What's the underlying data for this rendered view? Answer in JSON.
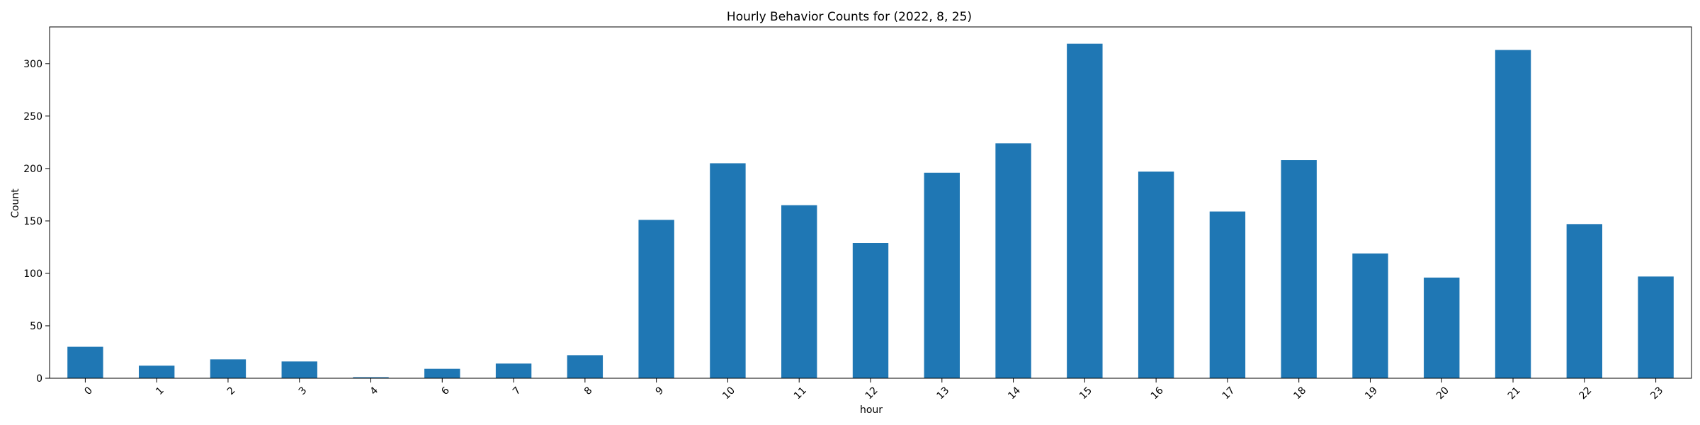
{
  "chart_data": {
    "type": "bar",
    "title": "Hourly Behavior Counts for (2022, 8, 25)",
    "xlabel": "hour",
    "ylabel": "Count",
    "categories": [
      "0",
      "1",
      "2",
      "3",
      "4",
      "6",
      "7",
      "8",
      "9",
      "10",
      "11",
      "12",
      "13",
      "14",
      "15",
      "16",
      "17",
      "18",
      "19",
      "20",
      "21",
      "22",
      "23"
    ],
    "values": [
      30,
      12,
      18,
      16,
      1,
      9,
      14,
      22,
      151,
      205,
      165,
      129,
      196,
      224,
      319,
      197,
      159,
      208,
      119,
      96,
      313,
      147,
      97
    ],
    "ylim": [
      0,
      335
    ],
    "yticks": [
      0,
      50,
      100,
      150,
      200,
      250,
      300
    ],
    "grid": false,
    "bar_color": "#1f77b4"
  }
}
